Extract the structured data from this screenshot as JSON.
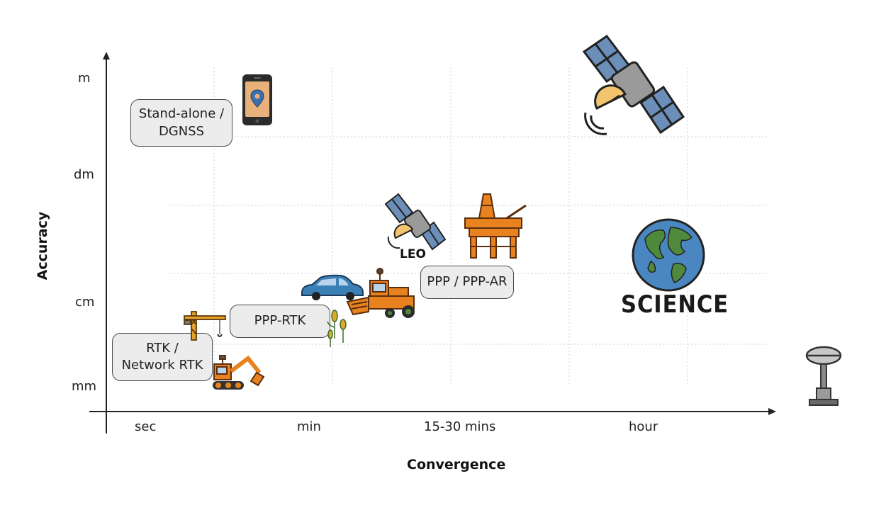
{
  "axes": {
    "x_title": "Convergence",
    "y_title": "Accuracy",
    "x_ticks": [
      "sec",
      "min",
      "15-30 mins",
      "hour"
    ],
    "y_ticks": [
      "m",
      "dm",
      "cm",
      "mm"
    ]
  },
  "methods": [
    {
      "line1": "Stand-alone /",
      "line2": "DGNSS"
    },
    {
      "line1": "PPP / PPP-AR",
      "line2": ""
    },
    {
      "line1": "PPP-RTK",
      "line2": ""
    },
    {
      "line1": "RTK /",
      "line2": "Network RTK"
    }
  ],
  "labels": {
    "leo": "LEO",
    "science": "SCIENCE"
  },
  "icons": [
    "smartphone-location-icon",
    "satellite-icon",
    "leo-satellite-icon",
    "oil-rig-icon",
    "globe-icon",
    "car-icon",
    "harvester-icon",
    "crops-icon",
    "crane-icon",
    "excavator-icon",
    "gnss-antenna-icon"
  ],
  "colors": {
    "box_fill": "#ececec",
    "orange": "#e8821e",
    "solar_blue": "#6b8fb8",
    "car_blue": "#3a7fb5",
    "ocean": "#4a86c0",
    "land": "#4f8a3c"
  }
}
